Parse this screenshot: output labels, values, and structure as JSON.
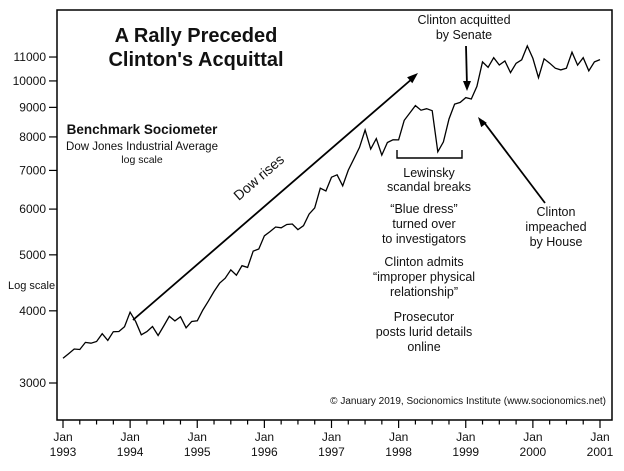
{
  "title_lines": [
    "A Rally Preceded",
    "Clinton's Acquittal"
  ],
  "benchmark": {
    "heading": "Benchmark Sociometer",
    "subheading": "Dow Jones Industrial Average",
    "note": "log scale"
  },
  "axis": {
    "log_scale_label": "Log scale",
    "month_label": "Jan"
  },
  "annotations": {
    "dow_rises": "Dow rises",
    "acquitted": [
      "Clinton acquitted",
      "by Senate"
    ],
    "lewinsky": [
      "Lewinsky",
      "scandal breaks"
    ],
    "blue_dress": [
      "“Blue dress”",
      "turned over",
      "to investigators"
    ],
    "admits": [
      "Clinton admits",
      "“improper physical",
      "relationship”"
    ],
    "prosecutor": [
      "Prosecutor",
      "posts lurid details",
      "online"
    ],
    "impeached": [
      "Clinton",
      "impeached",
      "by House"
    ],
    "copyright": "© January 2019, Socionomics Institute (www.socionomics.net)"
  },
  "chart_data": {
    "type": "line",
    "title": "A Rally Preceded Clinton's Acquittal",
    "series_name": "Dow Jones Industrial Average (monthly close)",
    "yscale": "log",
    "grid": false,
    "x_start": "1993-01",
    "x_end": "2001-01",
    "x_interval": "monthly",
    "yticks": [
      3000,
      4000,
      5000,
      6000,
      7000,
      8000,
      9000,
      10000,
      11000
    ],
    "ylim": [
      2600,
      13000
    ],
    "xtick_years": [
      "1993",
      "1994",
      "1995",
      "1996",
      "1997",
      "1998",
      "1999",
      "2000",
      "2001"
    ],
    "values": [
      3310,
      3371,
      3435,
      3428,
      3527,
      3516,
      3540,
      3651,
      3555,
      3681,
      3684,
      3754,
      3978,
      3832,
      3636,
      3682,
      3758,
      3625,
      3765,
      3913,
      3843,
      3908,
      3739,
      3834,
      3844,
      4011,
      4158,
      4321,
      4465,
      4556,
      4708,
      4611,
      4789,
      4756,
      5075,
      5117,
      5395,
      5486,
      5587,
      5569,
      5643,
      5655,
      5529,
      5616,
      5882,
      6029,
      6522,
      6448,
      6813,
      6878,
      6584,
      7009,
      7331,
      7673,
      8223,
      7622,
      7945,
      7442,
      7823,
      7908,
      7907,
      8546,
      8800,
      9063,
      8900,
      8952,
      8883,
      7539,
      7843,
      8592,
      9117,
      9181,
      9359,
      9307,
      9786,
      10789,
      10560,
      10971,
      10655,
      10829,
      10337,
      10730,
      10878,
      11497,
      10941,
      10128,
      10922,
      10734,
      10522,
      10448,
      10522,
      11215,
      10651,
      10971,
      10414,
      10788,
      10887
    ]
  }
}
